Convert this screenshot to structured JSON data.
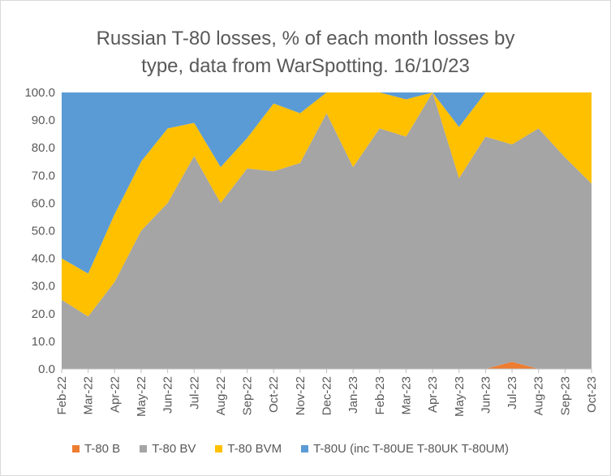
{
  "chart_data": {
    "type": "area",
    "stacked": true,
    "title_line1": "Russian T-80 losses, % of each month losses by",
    "title_line2": "type, data from WarSpotting. 16/10/23",
    "categories": [
      "Feb-22",
      "Mar-22",
      "Apr-22",
      "May-22",
      "Jun-22",
      "Jul-22",
      "Aug-22",
      "Sep-22",
      "Oct-22",
      "Nov-22",
      "Dec-22",
      "Jan-23",
      "Feb-23",
      "Mar-23",
      "Apr-23",
      "May-23",
      "Jun-23",
      "Jul-23",
      "Aug-23",
      "Sep-23",
      "Oct-23"
    ],
    "ylim": [
      0,
      100
    ],
    "yticks": [
      "0.0",
      "10.0",
      "20.0",
      "30.0",
      "40.0",
      "50.0",
      "60.0",
      "70.0",
      "80.0",
      "90.0",
      "100.0"
    ],
    "grid": false,
    "legend_position": "bottom",
    "series": [
      {
        "name": "T-80 B",
        "color": "#ED7D31",
        "values": [
          0,
          0,
          0,
          0,
          0,
          0,
          0,
          0,
          0,
          0,
          0,
          0,
          0,
          0,
          0,
          0,
          0,
          2.6,
          0,
          0,
          0
        ]
      },
      {
        "name": "T-80 BV",
        "color": "#A5A5A5",
        "values": [
          25,
          19,
          31.5,
          50,
          60,
          77,
          60,
          72.5,
          71.5,
          74.5,
          92.5,
          73,
          87,
          84,
          100,
          69,
          84,
          78.6,
          87,
          76.5,
          67
        ]
      },
      {
        "name": "T-80 BVM",
        "color": "#FFC000",
        "values": [
          15,
          15.5,
          24.5,
          25,
          27,
          12,
          13,
          11,
          24.5,
          18,
          7.5,
          27,
          13,
          13.5,
          0,
          18.5,
          16,
          18.8,
          13,
          23.5,
          33
        ]
      },
      {
        "name": "T-80U (inc T-80UE T-80UK T-80UM)",
        "color": "#5B9BD5",
        "values": [
          60,
          65.5,
          44,
          25,
          13,
          11,
          27,
          16.5,
          4,
          7.5,
          0,
          0,
          0,
          2.5,
          0,
          12.5,
          0,
          0,
          0,
          0,
          0
        ]
      }
    ]
  },
  "legend": {
    "items": [
      {
        "label": "T-80 B",
        "color": "#ED7D31"
      },
      {
        "label": "T-80 BV",
        "color": "#A5A5A5"
      },
      {
        "label": "T-80 BVM",
        "color": "#FFC000"
      },
      {
        "label": "T-80U (inc T-80UE T-80UK T-80UM)",
        "color": "#5B9BD5"
      }
    ]
  }
}
